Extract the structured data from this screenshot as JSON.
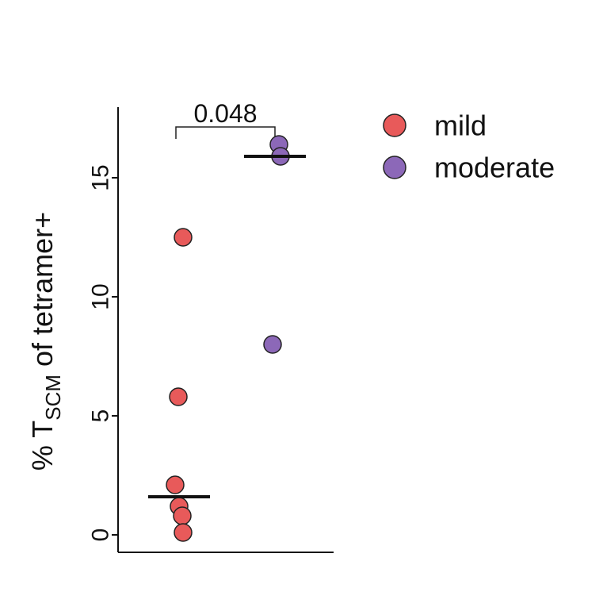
{
  "chart_data": {
    "type": "scatter",
    "title": "",
    "xlabel": "",
    "ylabel": {
      "prefix": "% T",
      "subscript": "SCM",
      "suffix": " of tetramer+"
    },
    "ylim": [
      0,
      17.8
    ],
    "yticks": [
      0,
      5,
      10,
      15
    ],
    "grid": false,
    "legend_position": "top-right",
    "groups": [
      "mild",
      "moderate"
    ],
    "series": [
      {
        "name": "mild",
        "color": "#e85a5a",
        "points": [
          {
            "x": 1,
            "y": 12.5
          },
          {
            "x": 1,
            "y": 5.8
          },
          {
            "x": 1,
            "y": 2.1
          },
          {
            "x": 1,
            "y": 1.2
          },
          {
            "x": 1,
            "y": 0.8
          },
          {
            "x": 1,
            "y": 0.1
          }
        ],
        "median": 1.6
      },
      {
        "name": "moderate",
        "color": "#8c68b8",
        "points": [
          {
            "x": 2,
            "y": 16.4
          },
          {
            "x": 2,
            "y": 15.9
          },
          {
            "x": 2,
            "y": 8.0
          }
        ],
        "median": 15.9
      }
    ],
    "annotation": {
      "label": "0.048",
      "between": [
        "mild",
        "moderate"
      ]
    }
  }
}
